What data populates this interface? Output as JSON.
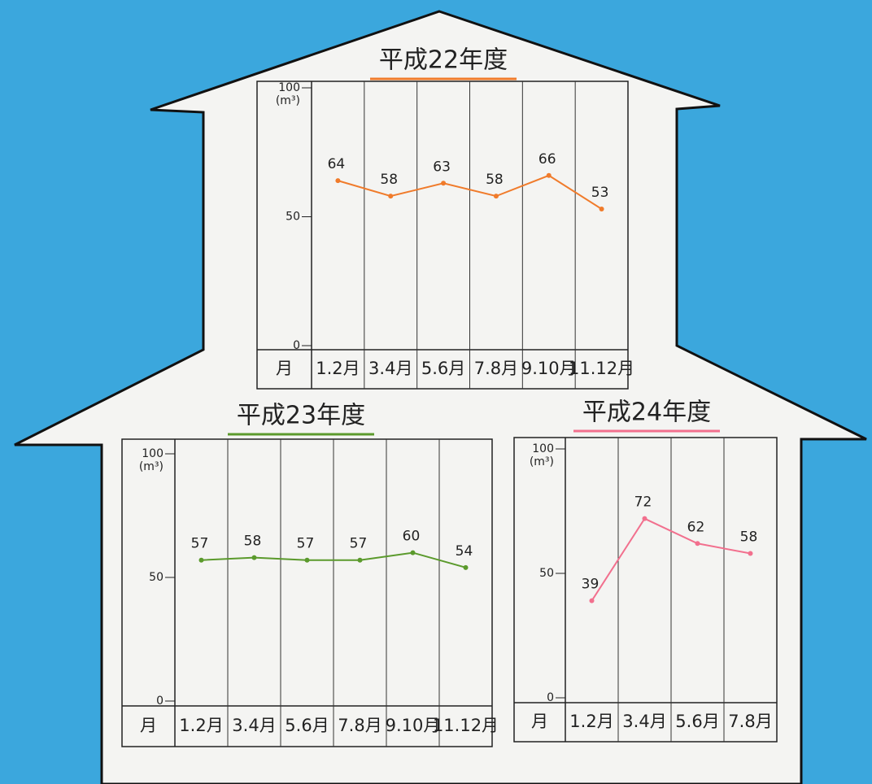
{
  "chart_data": [
    {
      "type": "line",
      "title": "平成22年度",
      "y_label": "(m³)",
      "x_label": "月",
      "categories": [
        "1.2月",
        "3.4月",
        "5.6月",
        "7.8月",
        "9.10月",
        "11.12月"
      ],
      "values": [
        64,
        58,
        63,
        58,
        66,
        53
      ],
      "color": "#f07b2b",
      "ylim": [
        0,
        100
      ],
      "yticks": [
        0,
        50,
        100
      ],
      "grid": false
    },
    {
      "type": "line",
      "title": "平成23年度",
      "y_label": "(m³)",
      "x_label": "月",
      "categories": [
        "1.2月",
        "3.4月",
        "5.6月",
        "7.8月",
        "9.10月",
        "11.12月"
      ],
      "values": [
        57,
        58,
        57,
        57,
        60,
        54
      ],
      "color": "#5b9a2c",
      "ylim": [
        0,
        100
      ],
      "yticks": [
        0,
        50,
        100
      ],
      "grid": false
    },
    {
      "type": "line",
      "title": "平成24年度",
      "y_label": "(m³)",
      "x_label": "月",
      "categories": [
        "1.2月",
        "3.4月",
        "5.6月",
        "7.8月"
      ],
      "values": [
        39,
        72,
        62,
        58
      ],
      "color": "#f2708e",
      "ylim": [
        0,
        100
      ],
      "yticks": [
        0,
        50,
        100
      ],
      "grid": false
    }
  ]
}
